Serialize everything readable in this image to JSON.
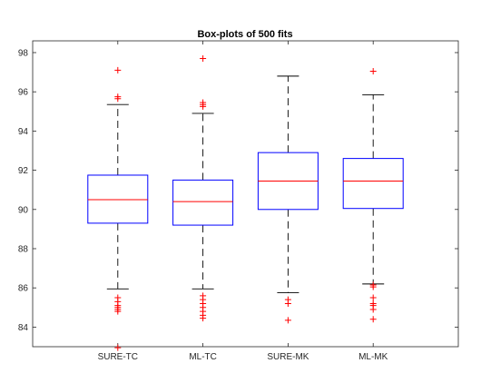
{
  "chart_data": {
    "type": "boxplot",
    "title": "Box-plots of 500 fits",
    "xlabel": "",
    "ylabel": "",
    "ylim": [
      83.0,
      98.6
    ],
    "yticks": [
      84,
      86,
      88,
      90,
      92,
      94,
      96,
      98
    ],
    "grid": false,
    "legend": "none",
    "categories": [
      "SURE-TC",
      "ML-TC",
      "SURE-MK",
      "ML-MK"
    ],
    "boxes": [
      {
        "label": "SURE-TC",
        "q1": 89.3,
        "median": 90.5,
        "q3": 91.75,
        "whisker_low": 85.95,
        "whisker_high": 95.35,
        "outliers": [
          97.1,
          95.75,
          95.65,
          85.5,
          85.3,
          85.1,
          85.0,
          84.9,
          84.8,
          82.95
        ]
      },
      {
        "label": "ML-TC",
        "q1": 89.2,
        "median": 90.4,
        "q3": 91.5,
        "whisker_low": 85.95,
        "whisker_high": 94.9,
        "outliers": [
          97.7,
          95.45,
          95.35,
          95.25,
          85.6,
          85.4,
          85.2,
          85.0,
          84.8,
          84.6,
          84.45
        ]
      },
      {
        "label": "SURE-MK",
        "q1": 90.0,
        "median": 91.45,
        "q3": 92.9,
        "whisker_low": 85.75,
        "whisker_high": 96.8,
        "outliers": [
          85.4,
          85.2,
          84.35
        ]
      },
      {
        "label": "ML-MK",
        "q1": 90.05,
        "median": 91.45,
        "q3": 92.6,
        "whisker_low": 86.2,
        "whisker_high": 95.85,
        "outliers": [
          97.05,
          86.15,
          86.05,
          85.5,
          85.2,
          85.1,
          84.9,
          84.4
        ]
      }
    ],
    "colors": {
      "box": "#0000ff",
      "median": "#ff0000",
      "whisker": "#000000",
      "outlier": "#ff0000",
      "axis": "#262626"
    }
  }
}
